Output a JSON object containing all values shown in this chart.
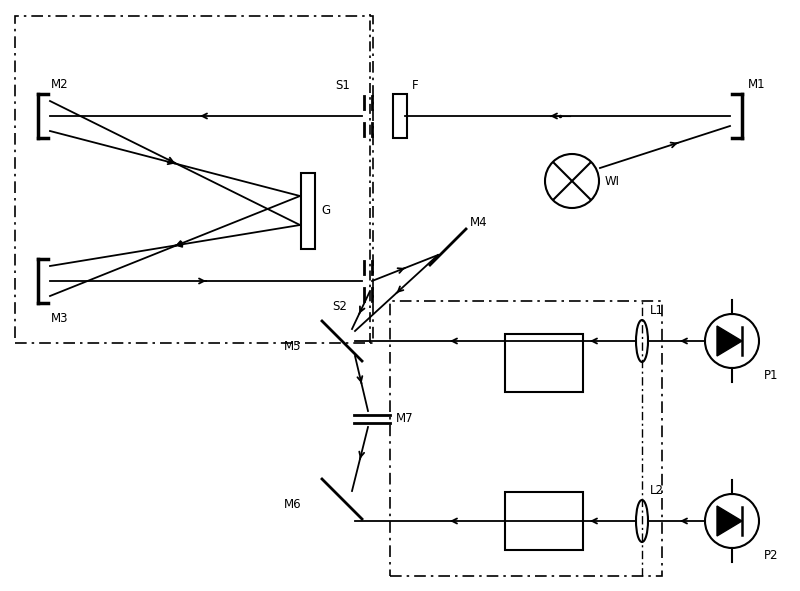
{
  "bg_color": "#ffffff",
  "line_color": "#000000",
  "fig_width": 8.0,
  "fig_height": 5.91,
  "dpi": 100,
  "xlim": [
    0,
    8.0
  ],
  "ylim": [
    0,
    5.91
  ]
}
